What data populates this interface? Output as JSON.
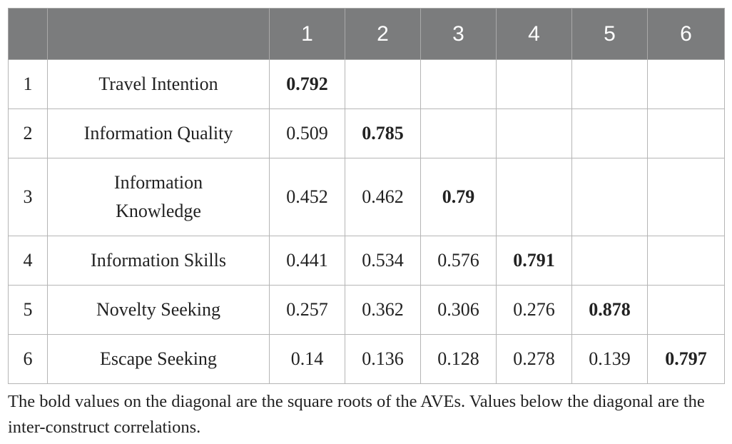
{
  "table": {
    "columns": [
      "",
      "",
      "1",
      "2",
      "3",
      "4",
      "5",
      "6"
    ],
    "rows": [
      {
        "num": "1",
        "name": "Travel Intention",
        "cells": [
          "0.792",
          "",
          "",
          "",
          "",
          ""
        ],
        "diag": 0
      },
      {
        "num": "2",
        "name": "Information Quality",
        "cells": [
          "0.509",
          "0.785",
          "",
          "",
          "",
          ""
        ],
        "diag": 1
      },
      {
        "num": "3",
        "name": "Information Knowledge",
        "cells": [
          "0.452",
          "0.462",
          "0.79",
          "",
          "",
          ""
        ],
        "diag": 2
      },
      {
        "num": "4",
        "name": "Information Skills",
        "cells": [
          "0.441",
          "0.534",
          "0.576",
          "0.791",
          "",
          ""
        ],
        "diag": 3
      },
      {
        "num": "5",
        "name": "Novelty Seeking",
        "cells": [
          "0.257",
          "0.362",
          "0.306",
          "0.276",
          "0.878",
          ""
        ],
        "diag": 4
      },
      {
        "num": "6",
        "name": "Escape Seeking",
        "cells": [
          "0.14",
          "0.136",
          "0.128",
          "0.278",
          "0.139",
          "0.797"
        ],
        "diag": 5
      }
    ]
  },
  "footnote": "The bold values on the diagonal are the square roots of the AVEs. Values below the diagonal are the inter-construct correlations.",
  "colors": {
    "header_bg": "#7b7c7d",
    "header_text": "#ffffff",
    "border": "#b5b5b5"
  }
}
